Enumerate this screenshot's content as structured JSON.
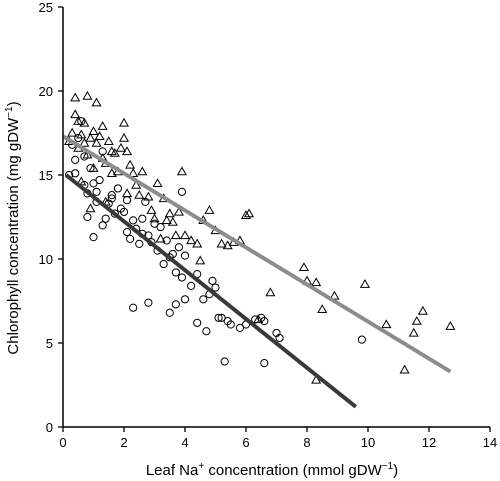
{
  "chart_data": {
    "type": "scatter",
    "title": "",
    "xlabel_prefix": "Leaf Na",
    "xlabel_sup": "+",
    "xlabel_mid": " concentration (mmol gDW",
    "xlabel_sup2": "−1",
    "xlabel_suffix": ")",
    "ylabel_main": "Chlorophyll concentration (mg gDW",
    "ylabel_sup": "−1",
    "ylabel_suffix": ")",
    "xlim": [
      0,
      14
    ],
    "ylim": [
      0,
      25
    ],
    "xticks": [
      0,
      2,
      4,
      6,
      8,
      10,
      12,
      14
    ],
    "yticks": [
      0,
      5,
      10,
      15,
      20,
      25
    ],
    "grid": false,
    "legend": "none",
    "series": [
      {
        "marker": "triangle",
        "color": "#000000",
        "trend": {
          "x": [
            0,
            12.7
          ],
          "y": [
            17.3,
            3.3
          ],
          "color": "#8c8c8c"
        },
        "points": [
          [
            0.2,
            17.0
          ],
          [
            0.3,
            17.5
          ],
          [
            0.4,
            18.6
          ],
          [
            0.4,
            19.6
          ],
          [
            0.5,
            18.2
          ],
          [
            0.5,
            16.6
          ],
          [
            0.6,
            17.4
          ],
          [
            0.7,
            16.9
          ],
          [
            0.7,
            18.1
          ],
          [
            0.8,
            19.7
          ],
          [
            0.8,
            16.2
          ],
          [
            0.9,
            17.2
          ],
          [
            1.0,
            17.6
          ],
          [
            1.0,
            15.4
          ],
          [
            1.1,
            16.9
          ],
          [
            1.1,
            19.3
          ],
          [
            1.2,
            17.3
          ],
          [
            1.3,
            16.0
          ],
          [
            1.3,
            17.9
          ],
          [
            1.4,
            15.7
          ],
          [
            1.5,
            17.0
          ],
          [
            1.6,
            16.4
          ],
          [
            1.6,
            15.1
          ],
          [
            1.7,
            16.3
          ],
          [
            1.8,
            15.2
          ],
          [
            1.9,
            16.6
          ],
          [
            2.0,
            17.2
          ],
          [
            2.0,
            18.1
          ],
          [
            2.1,
            16.4
          ],
          [
            2.2,
            15.6
          ],
          [
            2.3,
            15.1
          ],
          [
            2.4,
            14.4
          ],
          [
            2.5,
            13.8
          ],
          [
            2.6,
            15.2
          ],
          [
            2.8,
            13.7
          ],
          [
            2.9,
            12.9
          ],
          [
            3.0,
            12.4
          ],
          [
            3.1,
            14.5
          ],
          [
            3.3,
            13.6
          ],
          [
            3.4,
            12.3
          ],
          [
            3.5,
            12.7
          ],
          [
            3.6,
            12.2
          ],
          [
            3.7,
            11.4
          ],
          [
            3.8,
            12.8
          ],
          [
            3.9,
            15.2
          ],
          [
            4.0,
            11.4
          ],
          [
            4.2,
            11.1
          ],
          [
            4.4,
            10.9
          ],
          [
            4.6,
            12.3
          ],
          [
            4.8,
            12.9
          ],
          [
            5.0,
            11.7
          ],
          [
            5.2,
            10.9
          ],
          [
            5.4,
            10.8
          ],
          [
            5.6,
            11.0
          ],
          [
            5.8,
            11.1
          ],
          [
            6.0,
            12.6
          ],
          [
            6.1,
            12.7
          ],
          [
            6.8,
            8.0
          ],
          [
            7.9,
            9.5
          ],
          [
            8.0,
            8.7
          ],
          [
            8.3,
            8.6
          ],
          [
            8.5,
            7.0
          ],
          [
            8.9,
            7.8
          ],
          [
            9.9,
            8.5
          ],
          [
            10.6,
            6.1
          ],
          [
            11.2,
            3.4
          ],
          [
            11.5,
            5.6
          ],
          [
            11.6,
            6.3
          ],
          [
            11.8,
            6.9
          ],
          [
            12.7,
            6.0
          ],
          [
            8.3,
            2.8
          ],
          [
            6.4,
            6.4
          ],
          [
            0.6,
            14.6
          ],
          [
            1.4,
            13.4
          ],
          [
            2.1,
            13.9
          ],
          [
            3.2,
            11.2
          ],
          [
            4.5,
            9.9
          ],
          [
            0.9,
            13.0
          ]
        ]
      },
      {
        "marker": "circle",
        "color": "#000000",
        "trend": {
          "x": [
            0.1,
            9.6
          ],
          "y": [
            15.0,
            1.2
          ],
          "color": "#3a3a3a"
        },
        "points": [
          [
            0.2,
            15.0
          ],
          [
            0.3,
            16.8
          ],
          [
            0.4,
            15.1
          ],
          [
            0.5,
            17.2
          ],
          [
            0.6,
            18.2
          ],
          [
            0.7,
            16.1
          ],
          [
            0.7,
            14.4
          ],
          [
            0.8,
            13.9
          ],
          [
            0.8,
            12.5
          ],
          [
            0.9,
            15.4
          ],
          [
            1.0,
            14.5
          ],
          [
            1.0,
            11.3
          ],
          [
            1.1,
            13.4
          ],
          [
            1.2,
            14.7
          ],
          [
            1.3,
            12.0
          ],
          [
            1.3,
            16.4
          ],
          [
            1.4,
            12.4
          ],
          [
            1.5,
            13.3
          ],
          [
            1.6,
            13.8
          ],
          [
            1.7,
            12.7
          ],
          [
            1.8,
            14.2
          ],
          [
            1.9,
            13.0
          ],
          [
            2.0,
            12.8
          ],
          [
            2.1,
            11.6
          ],
          [
            2.1,
            13.5
          ],
          [
            2.2,
            11.2
          ],
          [
            2.3,
            12.3
          ],
          [
            2.4,
            11.8
          ],
          [
            2.5,
            10.9
          ],
          [
            2.6,
            12.4
          ],
          [
            2.7,
            13.4
          ],
          [
            2.8,
            11.4
          ],
          [
            2.9,
            11.0
          ],
          [
            3.0,
            12.1
          ],
          [
            3.1,
            10.5
          ],
          [
            3.2,
            11.9
          ],
          [
            3.3,
            9.7
          ],
          [
            3.4,
            11.1
          ],
          [
            3.5,
            10.1
          ],
          [
            3.6,
            10.3
          ],
          [
            3.7,
            9.2
          ],
          [
            3.8,
            10.7
          ],
          [
            3.9,
            8.9
          ],
          [
            4.0,
            10.2
          ],
          [
            4.2,
            8.4
          ],
          [
            4.4,
            9.1
          ],
          [
            4.6,
            7.6
          ],
          [
            4.8,
            7.9
          ],
          [
            4.9,
            8.7
          ],
          [
            5.0,
            8.3
          ],
          [
            5.1,
            6.5
          ],
          [
            5.2,
            6.5
          ],
          [
            5.4,
            6.3
          ],
          [
            5.5,
            6.1
          ],
          [
            5.8,
            5.9
          ],
          [
            6.0,
            6.1
          ],
          [
            6.3,
            6.4
          ],
          [
            6.5,
            6.5
          ],
          [
            6.6,
            6.3
          ],
          [
            7.0,
            5.6
          ],
          [
            7.1,
            5.3
          ],
          [
            2.3,
            7.1
          ],
          [
            2.8,
            7.4
          ],
          [
            3.5,
            6.8
          ],
          [
            3.7,
            7.3
          ],
          [
            4.0,
            7.6
          ],
          [
            4.4,
            6.2
          ],
          [
            4.7,
            5.7
          ],
          [
            5.3,
            3.9
          ],
          [
            6.6,
            3.8
          ],
          [
            9.8,
            5.2
          ],
          [
            0.4,
            15.9
          ],
          [
            1.1,
            14.0
          ],
          [
            1.6,
            13.6
          ],
          [
            2.6,
            11.5
          ],
          [
            3.9,
            14.0
          ]
        ]
      }
    ]
  }
}
